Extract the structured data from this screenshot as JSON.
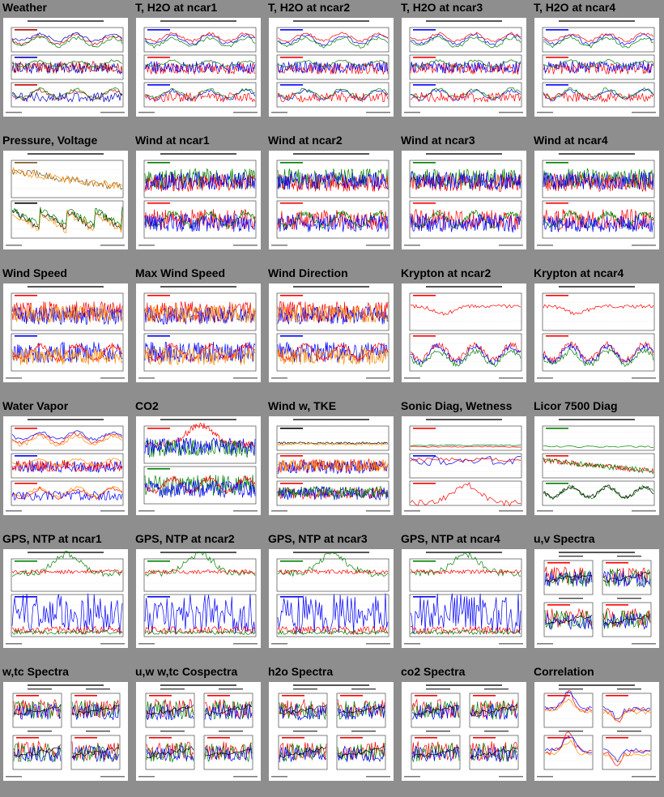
{
  "page": {
    "plot_kinds": [
      "3panel",
      "3panel",
      "3panel",
      "3panel",
      "3panel",
      "2panel",
      "2wind",
      "2wind",
      "2wind",
      "2wind",
      "2wind",
      "2wind",
      "2wind",
      "2kry",
      "2kry",
      "3panel",
      "2co2",
      "3tke",
      "3diag",
      "3licor",
      "gps",
      "gps",
      "gps",
      "gps",
      "spec",
      "spec",
      "spec",
      "spec",
      "spec",
      "corr"
    ]
  },
  "thumbnails": [
    {
      "title": "Weather",
      "colors": [
        "#c00000",
        "#0000c0",
        "#008000",
        "#202020"
      ]
    },
    {
      "title": "T, H2O at ncar1",
      "colors": [
        "#0000ff",
        "#ff0000",
        "#008000",
        "#000000"
      ]
    },
    {
      "title": "T, H2O at ncar2",
      "colors": [
        "#0000ff",
        "#ff0000",
        "#008000",
        "#000000"
      ]
    },
    {
      "title": "T, H2O at ncar3",
      "colors": [
        "#0000ff",
        "#ff0000",
        "#008000",
        "#000000"
      ]
    },
    {
      "title": "T, H2O at ncar4",
      "colors": [
        "#0000ff",
        "#ff0000",
        "#008000",
        "#000000"
      ]
    },
    {
      "title": "Pressure, Voltage",
      "colors": [
        "#7a5a20",
        "#ff8c00",
        "#000000",
        "#008000"
      ]
    },
    {
      "title": "Wind at ncar1",
      "colors": [
        "#008000",
        "#ff0000",
        "#0000ff",
        "#000000"
      ]
    },
    {
      "title": "Wind at ncar2",
      "colors": [
        "#008000",
        "#ff0000",
        "#0000ff",
        "#000000"
      ]
    },
    {
      "title": "Wind at ncar3",
      "colors": [
        "#008000",
        "#ff0000",
        "#0000ff",
        "#000000"
      ]
    },
    {
      "title": "Wind at ncar4",
      "colors": [
        "#008000",
        "#ff0000",
        "#0000ff",
        "#000000"
      ]
    },
    {
      "title": "Wind Speed",
      "colors": [
        "#ff0000",
        "#0000ff",
        "#ff8c00",
        "#008000"
      ]
    },
    {
      "title": "Max Wind Speed",
      "colors": [
        "#ff0000",
        "#0000ff",
        "#ff8c00",
        "#008000"
      ]
    },
    {
      "title": "Wind Direction",
      "colors": [
        "#ff0000",
        "#0000ff",
        "#ff8c00",
        "#008000"
      ]
    },
    {
      "title": "Krypton at ncar2",
      "colors": [
        "#ff0000",
        "#0000ff",
        "#008000",
        "#000000"
      ]
    },
    {
      "title": "Krypton at ncar4",
      "colors": [
        "#ff0000",
        "#0000ff",
        "#008000",
        "#000000"
      ]
    },
    {
      "title": "Water Vapor",
      "colors": [
        "#ff0000",
        "#0000ff",
        "#ff8c00",
        "#008000"
      ]
    },
    {
      "title": "CO2",
      "colors": [
        "#ff0000",
        "#008000",
        "#0000ff",
        "#000000"
      ]
    },
    {
      "title": "Wind w, TKE",
      "colors": [
        "#ff0000",
        "#0000ff",
        "#ff8c00",
        "#008000"
      ]
    },
    {
      "title": "Sonic Diag, Wetness",
      "colors": [
        "#ff0000",
        "#0000ff",
        "#ff8c00",
        "#008000"
      ]
    },
    {
      "title": "Licor 7500 Diag",
      "colors": [
        "#ff0000",
        "#008000",
        "#0000ff",
        "#000000"
      ]
    },
    {
      "title": "GPS, NTP at ncar1",
      "colors": [
        "#008000",
        "#ff0000",
        "#0000ff",
        "#000000"
      ]
    },
    {
      "title": "GPS, NTP at ncar2",
      "colors": [
        "#008000",
        "#ff0000",
        "#0000ff",
        "#000000"
      ]
    },
    {
      "title": "GPS, NTP at ncar3",
      "colors": [
        "#008000",
        "#ff0000",
        "#0000ff",
        "#000000"
      ]
    },
    {
      "title": "GPS, NTP at ncar4",
      "colors": [
        "#008000",
        "#ff0000",
        "#0000ff",
        "#000000"
      ]
    },
    {
      "title": "u,v Spectra",
      "colors": [
        "#ff0000",
        "#008000",
        "#0000ff",
        "#ff8c00"
      ]
    },
    {
      "title": "w,tc Spectra",
      "colors": [
        "#ff0000",
        "#008000",
        "#0000ff",
        "#ff8c00"
      ]
    },
    {
      "title": "u,w w,tc Cospectra",
      "colors": [
        "#ff0000",
        "#008000",
        "#0000ff",
        "#ff8c00"
      ]
    },
    {
      "title": "h2o Spectra",
      "colors": [
        "#ff0000",
        "#008000",
        "#0000ff",
        "#ff8c00"
      ]
    },
    {
      "title": "co2 Spectra",
      "colors": [
        "#ff0000",
        "#008000",
        "#0000ff",
        "#ff8c00"
      ]
    },
    {
      "title": "Correlation",
      "colors": [
        "#ff0000",
        "#0000ff",
        "#ff8c00",
        "#008000"
      ]
    }
  ]
}
